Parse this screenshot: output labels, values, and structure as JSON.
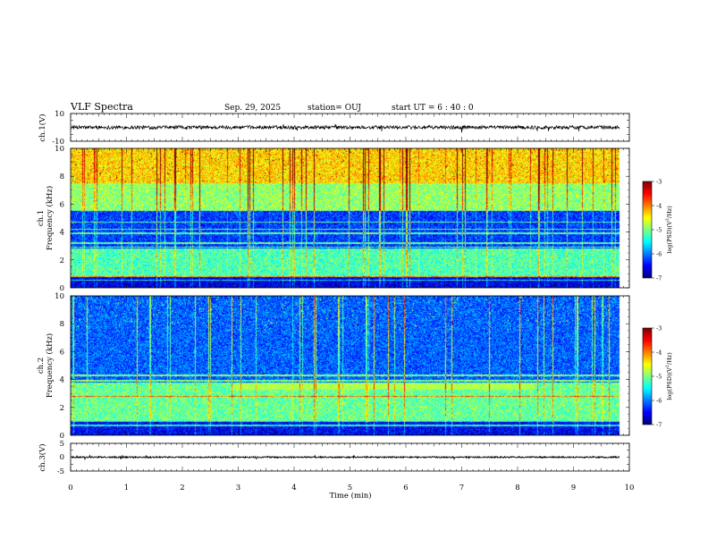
{
  "header": {
    "title": "VLF Spectra",
    "date": "Sep. 29, 2025",
    "station": "station= OUJ",
    "start_ut": "start  UT =  6 : 40 : 0"
  },
  "chart_data": [
    {
      "type": "line",
      "panel": "ch1-waveform",
      "ylabel": "ch.1(V)",
      "ylim": [
        -10,
        10
      ],
      "ytick_labels": [
        "10",
        "-10"
      ],
      "xlim": [
        0,
        10
      ],
      "baseline": 0,
      "noise_amplitude": 1.3,
      "color": "#000000"
    },
    {
      "type": "heatmap",
      "panel": "ch1-spectrogram",
      "ylabel": "ch.1\nFrequency (kHz)",
      "ylim": [
        0,
        10
      ],
      "ytick_labels": [
        "0",
        "2",
        "4",
        "6",
        "8",
        "10"
      ],
      "xlim": [
        0,
        10
      ],
      "data_end_min": 9.83,
      "colorbar": {
        "label": "log(PSD)(V²/Hz)",
        "range": [
          -7,
          -3
        ],
        "tick_labels": [
          "-3",
          "-4",
          "-5",
          "-6",
          "-7"
        ]
      },
      "bands": [
        {
          "from": 0.0,
          "to": 0.8,
          "level": 0.1
        },
        {
          "from": 0.8,
          "to": 2.8,
          "level": 0.45
        },
        {
          "from": 2.8,
          "to": 5.5,
          "level": 0.18
        },
        {
          "from": 5.5,
          "to": 7.5,
          "level": 0.52
        },
        {
          "from": 7.5,
          "to": 10.0,
          "level": 0.66
        }
      ],
      "tone_lines_khz": [
        0.55,
        0.8,
        2.9,
        3.2,
        3.9,
        4.2,
        4.7
      ],
      "spheric_density": 1.0
    },
    {
      "type": "heatmap",
      "panel": "ch2-spectrogram",
      "ylabel": "ch.2\nFrequency (kHz)",
      "ylim": [
        0,
        10
      ],
      "ytick_labels": [
        "0",
        "2",
        "4",
        "6",
        "8",
        "10"
      ],
      "xlim": [
        0,
        10
      ],
      "data_end_min": 9.83,
      "colorbar": {
        "label": "log(PSD)(V²/Hz)",
        "range": [
          -7,
          -3
        ],
        "tick_labels": [
          "-3",
          "-4",
          "-5",
          "-6",
          "-7"
        ]
      },
      "bands": [
        {
          "from": 0.0,
          "to": 1.0,
          "level": 0.12
        },
        {
          "from": 1.0,
          "to": 3.8,
          "level": 0.48
        },
        {
          "from": 3.8,
          "to": 10.0,
          "level": 0.22
        }
      ],
      "tone_lines_khz": [
        0.7,
        1.0,
        2.8,
        3.9,
        4.3
      ],
      "hiss_band": {
        "from_khz": 3.3,
        "to_khz": 3.7,
        "from_min": 2.9,
        "to_min": 8.3,
        "level": 0.55
      },
      "spheric_density": 0.8
    },
    {
      "type": "line",
      "panel": "ch3-waveform",
      "ylabel": "ch.3(V)",
      "ylim": [
        -5,
        5
      ],
      "ytick_labels": [
        "5",
        "0",
        "-5"
      ],
      "xlim": [
        0,
        10
      ],
      "baseline": 0,
      "noise_amplitude": 0.25,
      "color": "#000000"
    }
  ],
  "x_axis": {
    "label": "Time (min)",
    "range": [
      0,
      10
    ],
    "tick_labels": [
      "0",
      "1",
      "2",
      "3",
      "4",
      "5",
      "6",
      "7",
      "8",
      "9",
      "10"
    ]
  }
}
